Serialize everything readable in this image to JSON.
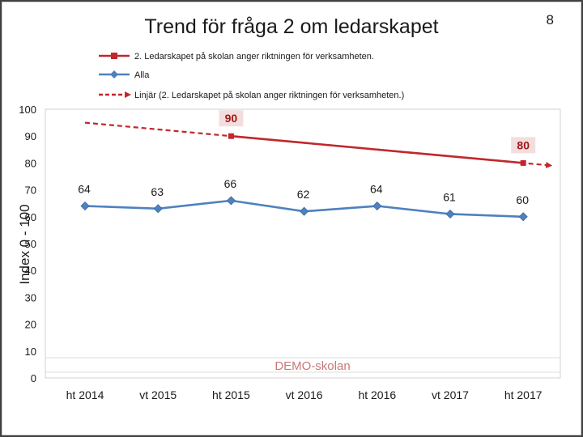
{
  "page_number": "8",
  "chart_data": {
    "type": "line",
    "title": "Trend för fråga 2 om ledarskapet",
    "ylabel": "Index 0 - 100",
    "xlabel": "",
    "ylim": [
      0,
      100
    ],
    "yticks": [
      0,
      10,
      20,
      30,
      40,
      50,
      60,
      70,
      80,
      90,
      100
    ],
    "categories": [
      "ht 2014",
      "vt 2015",
      "ht 2015",
      "vt 2016",
      "ht 2016",
      "vt 2017",
      "ht 2017"
    ],
    "series": [
      {
        "name": "2.   Ledarskapet på skolan anger riktningen för verksamheten.",
        "color": "#c0282d",
        "values": [
          null,
          null,
          90,
          null,
          null,
          null,
          80
        ],
        "labels": [
          "",
          "",
          "90",
          "",
          "",
          "",
          "80"
        ]
      },
      {
        "name": "Alla",
        "color": "#4f81bd",
        "values": [
          64,
          63,
          66,
          62,
          64,
          61,
          60
        ],
        "labels": [
          "64",
          "63",
          "66",
          "62",
          "64",
          "61",
          "60"
        ]
      },
      {
        "name": "Linjär (2.   Ledarskapet på skolan anger riktningen för verksamheten.)",
        "color": "#c0282d",
        "style": "dashed-trend",
        "values": [
          95,
          92.5,
          90,
          87.5,
          85,
          82.5,
          80
        ]
      }
    ],
    "legend_position": "top",
    "grid": false,
    "annotation": "DEMO-skolan"
  }
}
